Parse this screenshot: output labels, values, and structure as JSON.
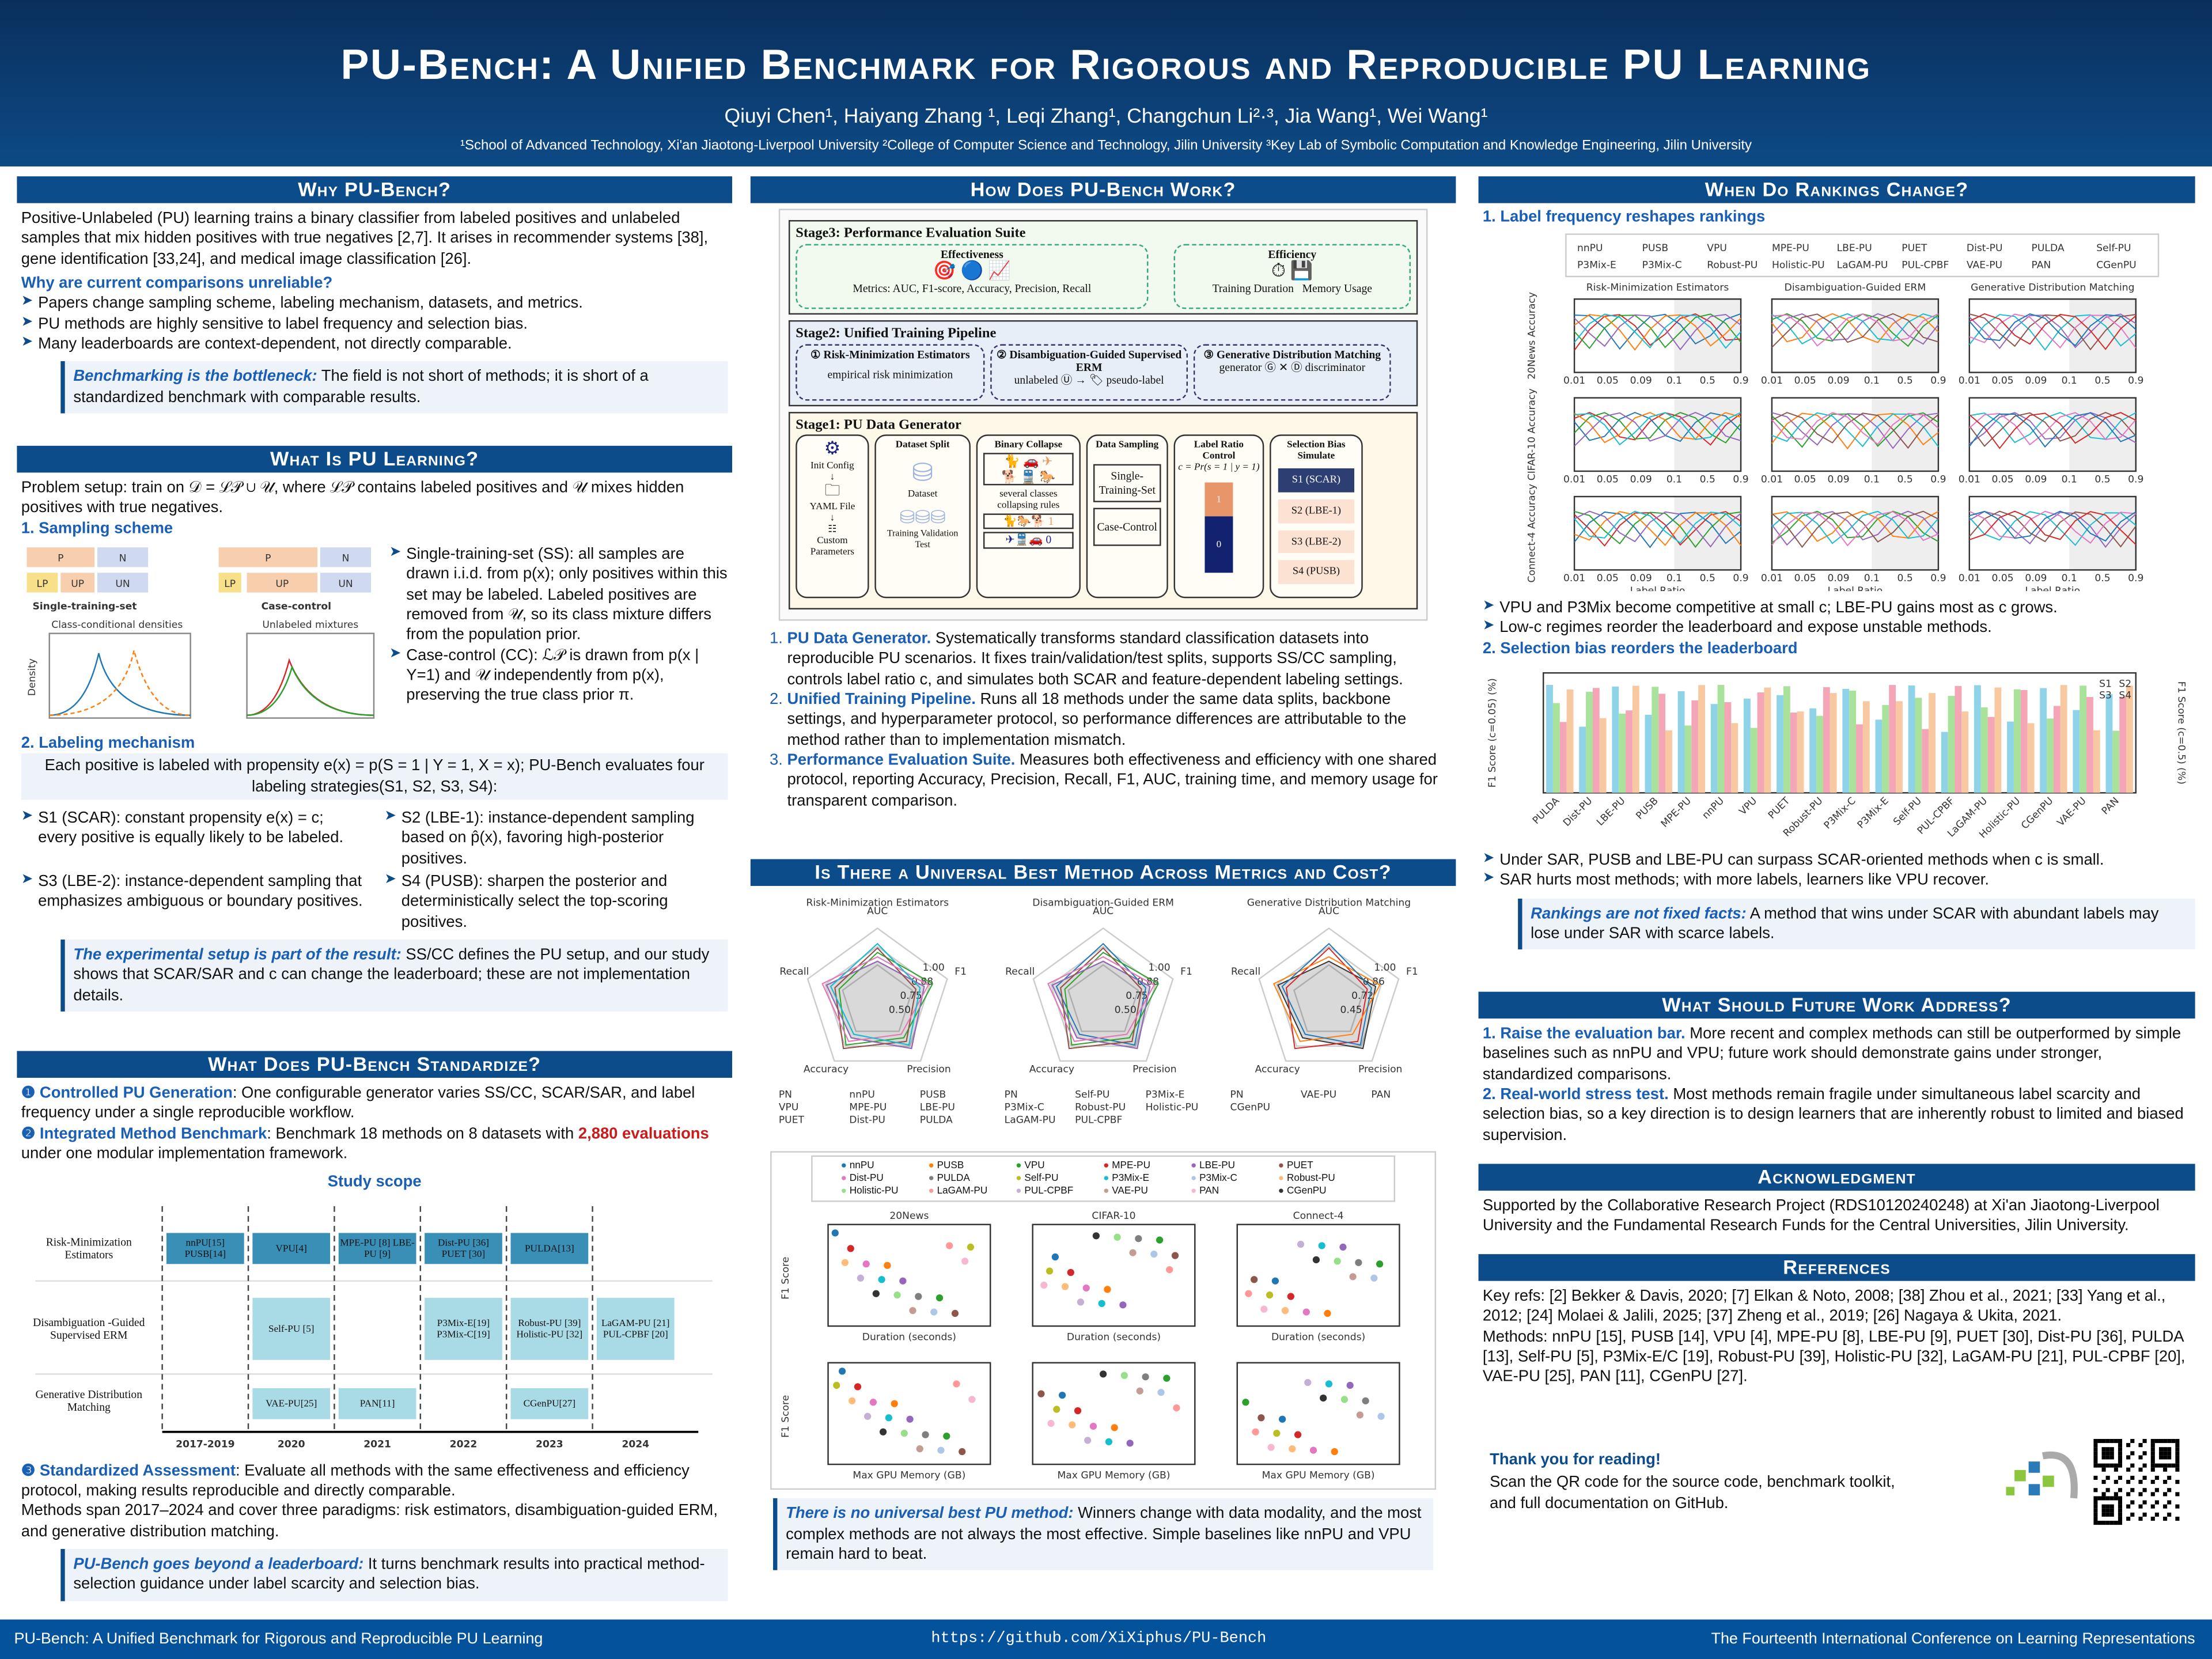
{
  "header": {
    "title": "PU-Bench: A Unified Benchmark for Rigorous and Reproducible PU Learning",
    "authors": "Qiuyi Chen¹, Haiyang Zhang ¹, Leqi Zhang¹, Changchun Li²·³, Jia Wang¹, Wei Wang¹",
    "affiliations": "¹School of Advanced Technology, Xi'an Jiaotong-Liverpool University   ²College of Computer Science and Technology, Jilin University   ³Key Lab of Symbolic Computation and Knowledge Engineering, Jilin University"
  },
  "why": {
    "title": "Why PU-Bench?",
    "intro": "Positive-Unlabeled (PU) learning trains a binary classifier from labeled positives and unlabeled samples that mix hidden positives with true negatives [2,7]. It arises in recommender systems [38], gene identification [33,24], and medical image classification [26].",
    "q": "Why are current comparisons unreliable?",
    "bullets": [
      "Papers change sampling scheme, labeling mechanism, datasets, and metrics.",
      "PU methods are highly sensitive to label frequency and selection bias.",
      "Many leaderboards are context-dependent, not directly comparable."
    ],
    "note_b": "Benchmarking is the bottleneck:",
    "note": " The field is not short of methods; it is short of a standardized benchmark with comparable results."
  },
  "what": {
    "title": "What Is PU Learning?",
    "setup": "Problem setup: train on 𝒟 = ℒ𝒫 ∪ 𝒰, where ℒ𝒫 contains labeled positives and 𝒰 mixes hidden positives with true negatives.",
    "s1": "1. Sampling scheme",
    "fig": {
      "p": "P",
      "n": "N",
      "lp": "LP",
      "up": "UP",
      "un": "UN",
      "ss": "Single-training-set",
      "cc": "Case-control",
      "d1": "Class-conditional densities",
      "d2": "Unlabeled mixtures",
      "ylab": "Density"
    },
    "ss": "Single-training-set (SS): all samples are drawn i.i.d. from p(x); only positives within this set may be labeled. Labeled positives are removed from 𝒰, so its class mixture differs from the population prior.",
    "cc": "Case-control (CC): ℒ𝒫 is drawn from p(x | Y=1) and 𝒰 independently from p(x), preserving the true class prior π.",
    "s2": "2. Labeling mechanism",
    "prop": "Each positive is labeled with propensity e(x) = p(S = 1 | Y = 1, X = x); PU-Bench evaluates four labeling strategies(S1, S2, S3, S4):",
    "strats": [
      "S1 (SCAR): constant propensity e(x) = c; every positive is equally likely to be labeled.",
      "S2 (LBE-1): instance-dependent sampling based on p̂(x), favoring high-posterior positives.",
      "S3 (LBE-2): instance-dependent sampling that emphasizes ambiguous or boundary positives.",
      "S4 (PUSB): sharpen the posterior and deterministically select the top-scoring positives."
    ],
    "note_b": "The experimental setup is part of the result:",
    "note": " SS/CC defines the PU setup, and our study shows that SCAR/SAR and c can change the leaderboard; these are not implementation details."
  },
  "std": {
    "title": "What Does PU-Bench Standardize?",
    "p1b": "❶ Controlled PU Generation",
    "p1": ": One configurable generator varies SS/CC, SCAR/SAR, and label frequency under a single reproducible workflow.",
    "p2b": "❷ Integrated Method Benchmark",
    "p2": ": Benchmark 18 methods on 8 datasets with ",
    "p2r": "2,880 evaluations",
    "p2e": " under one modular implementation framework.",
    "scope": "Study scope",
    "rows": [
      "Risk-Minimization Estimators",
      "Disambiguation -Guided Supervised ERM",
      "Generative Distribution Matching"
    ],
    "years": [
      "2017-2019",
      "2020",
      "2021",
      "2022",
      "2023",
      "2024"
    ],
    "cells": [
      {
        "r": 0,
        "c": 0,
        "t": "nnPU[15] PUSB[14]"
      },
      {
        "r": 0,
        "c": 1,
        "t": "VPU[4]"
      },
      {
        "r": 0,
        "c": 2,
        "t": "MPE-PU [8] LBE-PU [9]"
      },
      {
        "r": 0,
        "c": 3,
        "t": "Dist-PU [36] PUET [30]"
      },
      {
        "r": 0,
        "c": 4,
        "t": "PULDA[13]"
      },
      {
        "r": 1,
        "c": 1,
        "t": "Self-PU [5]"
      },
      {
        "r": 1,
        "c": 3,
        "t": "P3Mix-E[19] P3Mix-C[19]"
      },
      {
        "r": 1,
        "c": 4,
        "t": "Robust-PU [39] Holistic-PU [32]"
      },
      {
        "r": 1,
        "c": 5,
        "t": "LaGAM-PU [21] PUL-CPBF [20]"
      },
      {
        "r": 2,
        "c": 1,
        "t": "VAE-PU[25]"
      },
      {
        "r": 2,
        "c": 2,
        "t": "PAN[11]"
      },
      {
        "r": 2,
        "c": 4,
        "t": "CGenPU[27]"
      }
    ],
    "p3b": "❸ Standardized Assessment",
    "p3": ": Evaluate all methods with the same effectiveness and efficiency protocol, making results reproducible and directly comparable.",
    "p4": "Methods span 2017–2024 and cover three paradigms: risk estimators, disambiguation-guided ERM, and generative distribution matching.",
    "note_b": "PU-Bench goes beyond a leaderboard:",
    "note": " It turns benchmark results into practical method-selection guidance under label scarcity and selection bias."
  },
  "how": {
    "title": "How Does PU-Bench Work?",
    "st3": "Stage3: Performance Evaluation Suite",
    "eff": "Effectiveness",
    "effi": "Efficiency",
    "metrics": "Metrics: AUC, F1-score, Accuracy, Precision, Recall",
    "td": "Training Duration",
    "mu": "Memory Usage",
    "st2": "Stage2: Unified Training Pipeline",
    "m1": "① Risk-Minimization Estimators",
    "erm": "empirical risk minimization",
    "m2": "② Disambiguation-Guided Supervised ERM",
    "unl": "unlabeled",
    "pl": "pseudo-label",
    "m3": "③ Generative Distribution Matching",
    "gen": "generator",
    "dis": "discriminator",
    "st1": "Stage1: PU Data Generator",
    "init": "Init Config",
    "yaml": "YAML File",
    "cust": "Custom Parameters",
    "split": "Dataset Split",
    "dataset": "Dataset",
    "tr": "Training",
    "va": "Validation",
    "te": "Test",
    "bc": "Binary Collapse",
    "sev": "several classes",
    "rules": "collapsing rules",
    "ds": "Data Sampling",
    "sts": "Single-Training-Set",
    "ccl": "Case-Control",
    "lrc": "Label Ratio Control",
    "cdef": "c = Pr(s = 1 | y = 1)",
    "one": "1",
    "zero": "0",
    "sbs": "Selection Bias Simulate",
    "sb": [
      "S1 (SCAR)",
      "S2 (LBE-1)",
      "S3 (LBE-2)",
      "S4 (PUSB)"
    ],
    "items": [
      {
        "b": "PU Data Generator.",
        "t": " Systematically transforms standard classification datasets into reproducible PU scenarios. It fixes train/validation/test splits, supports SS/CC sampling, controls label ratio c, and simulates both SCAR and feature-dependent labeling settings."
      },
      {
        "b": "Unified Training Pipeline.",
        "t": " Runs all 18 methods under the same data splits, backbone settings, and hyperparameter protocol, so performance differences are attributable to the method rather than to implementation mismatch."
      },
      {
        "b": "Performance Evaluation Suite.",
        "t": " Measures both effectiveness and efficiency with one shared protocol, reporting Accuracy, Precision, Recall, F1, AUC, training time, and memory usage for transparent comparison."
      }
    ]
  },
  "best": {
    "title": "Is There a Universal Best Method Across Metrics and Cost?",
    "radars": [
      {
        "t": "Risk-Minimization Estimators",
        "r": [
          "0.50",
          "0.75",
          "0.88",
          "1.00"
        ],
        "leg": [
          "PN",
          "nnPU",
          "PUSB",
          "VPU",
          "MPE-PU",
          "LBE-PU",
          "PUET",
          "Dist-PU",
          "PULDA"
        ]
      },
      {
        "t": "Disambiguation-Guided ERM",
        "r": [
          "0.50",
          "0.75",
          "0.88",
          "1.00"
        ],
        "leg": [
          "PN",
          "Self-PU",
          "P3Mix-E",
          "P3Mix-C",
          "Robust-PU",
          "Holistic-PU",
          "LaGAM-PU",
          "PUL-CPBF"
        ]
      },
      {
        "t": "Generative Distribution Matching",
        "r": [
          "0.45",
          "0.72",
          "0.86",
          "1.00"
        ],
        "leg": [
          "PN",
          "VAE-PU",
          "PAN",
          "CGenPU"
        ]
      }
    ],
    "axes": [
      "AUC",
      "F1",
      "Precision",
      "Accuracy",
      "Recall"
    ],
    "legend": [
      "nnPU",
      "PUSB",
      "VPU",
      "MPE-PU",
      "LBE-PU",
      "PUET",
      "Dist-PU",
      "PULDA",
      "Self-PU",
      "P3Mix-E",
      "P3Mix-C",
      "Robust-PU",
      "Holistic-PU",
      "LaGAM-PU",
      "PUL-CPBF",
      "VAE-PU",
      "PAN",
      "CGenPU"
    ],
    "datasets": [
      "20News",
      "CIFAR-10",
      "Connect-4"
    ],
    "f1": "F1 Score",
    "dur": "Duration (seconds)",
    "mem": "Max GPU Memory (GB)",
    "note_b": "There is no universal best PU method:",
    "note": " Winners change with data modality, and the most complex methods are not always the most effective. Simple baselines like nnPU and VPU remain hard to beat."
  },
  "rank": {
    "title": "When Do Rankings Change?",
    "s1": "1. Label frequency reshapes rankings",
    "groups": [
      "Risk-Minimization Estimators",
      "Disambiguation-Guided ERM",
      "Generative Distribution Matching"
    ],
    "rows": [
      "20News Accuracy",
      "CIFAR-10 Accuracy",
      "Connect-4 Accuracy"
    ],
    "xl": "Label Ratio",
    "xt": [
      "0.01",
      "0.05",
      "0.09",
      "0.1",
      "0.5",
      "0.9"
    ],
    "b1": [
      "VPU and P3Mix become competitive at small c; LBE-PU gains most as c grows.",
      "Low-c regimes reorder the leaderboard and expose unstable methods."
    ],
    "s2": "2. Selection bias reorders the leaderboard",
    "yl": "F1 Score (c=0.05) (%)",
    "yr": "F1 Score (c=0.5) (%)",
    "methods": [
      "PULDA",
      "Dist-PU",
      "LBE-PU",
      "PUSB",
      "MPE-PU",
      "nnPU",
      "VPU",
      "PUET",
      "Robust-PU",
      "P3Mix-C",
      "P3Mix-E",
      "Self-PU",
      "PUL-CPBF",
      "LaGAM-PU",
      "Holistic-PU",
      "CGenPU",
      "VAE-PU",
      "PAN"
    ],
    "sl": [
      "S1",
      "S2",
      "S3",
      "S4"
    ],
    "b2": [
      "Under SAR, PUSB and LBE-PU can surpass SCAR-oriented methods when c is small.",
      "SAR hurts most methods; with more labels, learners like VPU recover."
    ],
    "note_b": "Rankings are not fixed facts:",
    "note": " A method that wins under SCAR with abundant labels may lose under SAR with scarce labels."
  },
  "future": {
    "title": "What Should Future Work Address?",
    "items": [
      {
        "b": "1.  Raise the evaluation bar.",
        "t": " More recent and complex methods can still be outperformed by simple baselines such as nnPU and VPU; future work should demonstrate gains under stronger, standardized comparisons."
      },
      {
        "b": "2.  Real-world stress test.",
        "t": " Most methods remain fragile under simultaneous label scarcity and selection bias, so a key direction is to design learners that are inherently robust to limited and biased supervision."
      }
    ]
  },
  "ack": {
    "title": "Acknowledgment",
    "t": "Supported by the Collaborative Research Project (RDS10120240248) at Xi'an Jiaotong-Liverpool University and the Fundamental Research Funds for the Central Universities, Jilin University."
  },
  "refs": {
    "title": "References",
    "t1": "Key refs: [2] Bekker & Davis, 2020; [7] Elkan & Noto, 2008; [38] Zhou et al., 2021; [33] Yang et al., 2012; [24] Molaei & Jalili, 2025; [37] Zheng et al., 2019; [26] Nagaya & Ukita, 2021.",
    "t2": "Methods: nnPU [15], PUSB [14], VPU [4], MPE-PU [8], LBE-PU [9], PUET [30], Dist-PU [36], PULDA [13], Self-PU [5], P3Mix-E/C [19], Robust-PU [39], Holistic-PU [32], LaGAM-PU [21], PUL-CPBF [20], VAE-PU [25], PAN [11], CGenPU [27]."
  },
  "thanks": {
    "t": "Thank you for reading!",
    "s": "Scan the QR code for the source code, benchmark toolkit, and full documentation on GitHub."
  },
  "footer": {
    "left": "PU-Bench: A Unified Benchmark for Rigorous and Reproducible PU Learning",
    "mid": "https://github.com/XiXiphus/PU-Bench",
    "right": "The Fourteenth International Conference on Learning Representations"
  },
  "colors": {
    "header": "#0d4c8b",
    "accent": "#1a5fb4",
    "footer": "#03529b",
    "highlight": "#c81d1d"
  }
}
